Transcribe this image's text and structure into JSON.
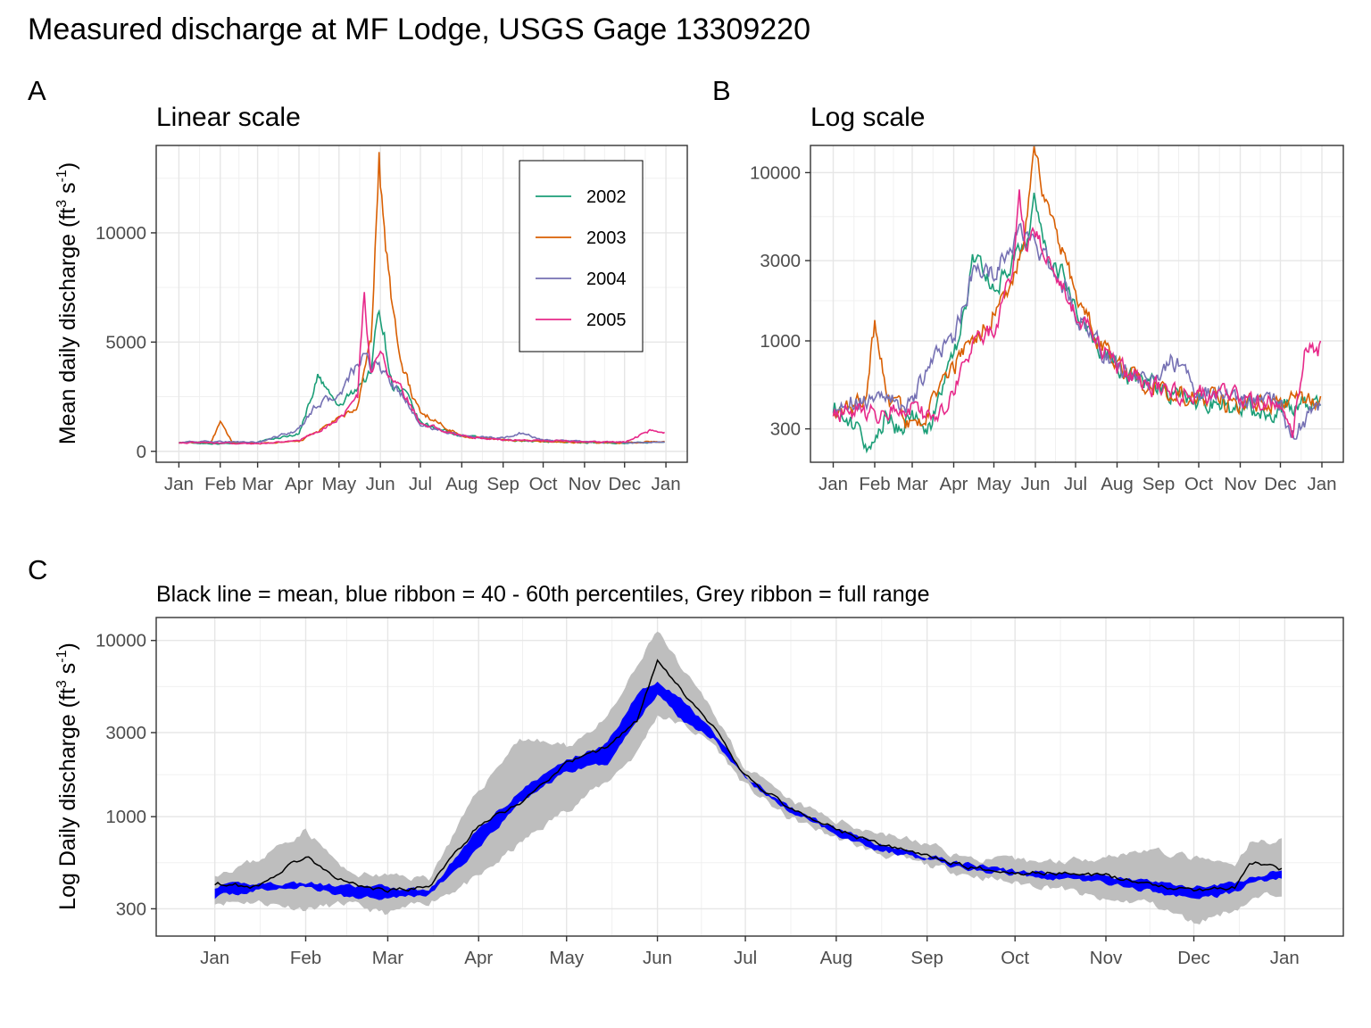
{
  "figure": {
    "title": "Measured discharge at MF Lodge, USGS Gage 13309220"
  },
  "chart_data": [
    {
      "panel": "A",
      "type": "line",
      "title": "Linear scale",
      "xlabel": "",
      "ylabel": "Mean daily discharge (ft3 s-1)",
      "ylabel_parts": {
        "main": "Mean daily discharge (ft",
        "sup1": "3",
        "mid": " s",
        "sup2": "-1",
        "end": ")"
      },
      "y_scale": "linear",
      "ylim": [
        -500,
        14000
      ],
      "x_ticks": [
        "Jan",
        "Feb",
        "Mar",
        "Apr",
        "May",
        "Jun",
        "Jul",
        "Aug",
        "Sep",
        "Oct",
        "Nov",
        "Dec",
        "Jan"
      ],
      "y_ticks": [
        0,
        5000,
        10000
      ],
      "y_tick_labels": [
        "0",
        "5000",
        "10000"
      ],
      "grid": true,
      "legend": {
        "position": "top-right",
        "entries": [
          "2002",
          "2003",
          "2004",
          "2005"
        ]
      },
      "series": [
        {
          "name": "2002",
          "color": "#1b9e77",
          "x": [
            "Jan 1",
            "Feb 1",
            "Mar 1",
            "Apr 1",
            "Apr 15",
            "May 1",
            "May 15",
            "May 25",
            "May 31",
            "Jun 10",
            "Jun 20",
            "Jul 1",
            "Aug 1",
            "Sep 1",
            "Oct 1",
            "Nov 1",
            "Dec 1",
            "Dec 31"
          ],
          "y": [
            400,
            350,
            420,
            800,
            3400,
            2000,
            3000,
            3600,
            6800,
            3000,
            2600,
            1300,
            700,
            520,
            450,
            400,
            380,
            420
          ]
        },
        {
          "name": "2003",
          "color": "#d95f02",
          "x": [
            "Jan 1",
            "Jan 25",
            "Feb 1",
            "Feb 10",
            "Mar 1",
            "Apr 1",
            "Apr 15",
            "May 1",
            "May 15",
            "May 25",
            "May 31",
            "Jun 5",
            "Jun 15",
            "Jun 25",
            "Jul 1",
            "Aug 1",
            "Sep 1",
            "Oct 1",
            "Nov 1",
            "Dec 1",
            "Dec 31"
          ],
          "y": [
            400,
            420,
            1300,
            420,
            350,
            450,
            900,
            1500,
            2000,
            5000,
            13300,
            9000,
            4500,
            2500,
            1800,
            700,
            520,
            450,
            400,
            400,
            450
          ]
        },
        {
          "name": "2004",
          "color": "#7570b3",
          "x": [
            "Jan 1",
            "Feb 1",
            "Mar 1",
            "Apr 1",
            "Apr 15",
            "May 1",
            "May 10",
            "May 20",
            "May 25",
            "May 31",
            "Jun 10",
            "Jun 20",
            "Jul 1",
            "Aug 1",
            "Sep 1",
            "Sep 15",
            "Oct 1",
            "Nov 1",
            "Dec 1",
            "Dec 31"
          ],
          "y": [
            420,
            450,
            400,
            1000,
            2200,
            2500,
            3500,
            4300,
            3800,
            4000,
            3000,
            2400,
            1200,
            700,
            600,
            850,
            500,
            450,
            400,
            420
          ]
        },
        {
          "name": "2005",
          "color": "#e7298a",
          "x": [
            "Jan 1",
            "Feb 1",
            "Mar 1",
            "Apr 1",
            "Apr 15",
            "May 1",
            "May 15",
            "May 20",
            "May 25",
            "May 31",
            "Jun 10",
            "Jun 20",
            "Jul 1",
            "Aug 1",
            "Sep 1",
            "Oct 1",
            "Nov 1",
            "Dec 1",
            "Dec 20",
            "Dec 31"
          ],
          "y": [
            400,
            380,
            350,
            500,
            900,
            1500,
            2500,
            7300,
            3500,
            4500,
            3300,
            2500,
            1300,
            700,
            520,
            500,
            450,
            420,
            950,
            900
          ]
        }
      ]
    },
    {
      "panel": "B",
      "type": "line",
      "title": "Log scale",
      "xlabel": "",
      "ylabel": "",
      "y_scale": "log",
      "ylim": [
        190,
        14500
      ],
      "x_ticks": [
        "Jan",
        "Feb",
        "Mar",
        "Apr",
        "May",
        "Jun",
        "Jul",
        "Aug",
        "Sep",
        "Oct",
        "Nov",
        "Dec",
        "Jan"
      ],
      "y_ticks": [
        300,
        1000,
        3000,
        10000
      ],
      "y_tick_labels": [
        "300",
        "1000",
        "3000",
        "10000"
      ],
      "grid": true,
      "series": [
        {
          "name": "2002",
          "color": "#1b9e77",
          "x": [
            "Jan 1",
            "Jan 10",
            "Jan 20",
            "Feb 1",
            "Feb 10",
            "Feb 20",
            "Mar 1",
            "Mar 15",
            "Apr 1",
            "Apr 10",
            "Apr 15",
            "May 1",
            "May 15",
            "May 25",
            "May 31",
            "Jun 10",
            "Jun 20",
            "Jul 1",
            "Aug 1",
            "Sep 1",
            "Oct 1",
            "Nov 1",
            "Dec 1",
            "Dec 31"
          ],
          "y": [
            420,
            330,
            300,
            220,
            380,
            300,
            350,
            320,
            800,
            1500,
            3300,
            2000,
            3000,
            3600,
            6800,
            3200,
            2600,
            1500,
            700,
            520,
            450,
            400,
            400,
            450
          ]
        },
        {
          "name": "2003",
          "color": "#d95f02",
          "x": [
            "Jan 1",
            "Jan 10",
            "Jan 25",
            "Feb 1",
            "Feb 10",
            "Feb 20",
            "Mar 1",
            "Mar 15",
            "Apr 1",
            "Apr 15",
            "May 1",
            "May 15",
            "May 25",
            "May 31",
            "Jun 5",
            "Jun 15",
            "Jun 25",
            "Jul 1",
            "Aug 1",
            "Sep 1",
            "Oct 1",
            "Nov 1",
            "Dec 1",
            "Dec 31"
          ],
          "y": [
            420,
            380,
            450,
            1300,
            450,
            400,
            300,
            420,
            700,
            1000,
            1500,
            2000,
            5000,
            13300,
            9000,
            4500,
            2800,
            1800,
            700,
            520,
            480,
            420,
            450,
            450
          ]
        },
        {
          "name": "2004",
          "color": "#7570b3",
          "x": [
            "Jan 1",
            "Feb 1",
            "Mar 1",
            "Mar 15",
            "Apr 1",
            "Apr 15",
            "May 1",
            "May 10",
            "May 20",
            "May 31",
            "Jun 10",
            "Jun 20",
            "Jul 1",
            "Aug 1",
            "Sep 1",
            "Sep 10",
            "Sep 20",
            "Oct 1",
            "Nov 1",
            "Dec 1",
            "Dec 10",
            "Dec 31"
          ],
          "y": [
            420,
            450,
            420,
            800,
            1000,
            2500,
            2500,
            3500,
            4300,
            4000,
            3000,
            2400,
            1500,
            700,
            600,
            800,
            700,
            500,
            450,
            420,
            280,
            420
          ]
        },
        {
          "name": "2005",
          "color": "#e7298a",
          "x": [
            "Jan 1",
            "Feb 1",
            "Mar 1",
            "Mar 15",
            "Apr 1",
            "Apr 15",
            "May 1",
            "May 15",
            "May 20",
            "May 25",
            "May 31",
            "Jun 10",
            "Jun 20",
            "Jul 1",
            "Aug 1",
            "Sep 1",
            "Oct 1",
            "Nov 1",
            "Dec 1",
            "Dec 10",
            "Dec 20",
            "Dec 31"
          ],
          "y": [
            400,
            380,
            400,
            350,
            500,
            900,
            1200,
            2500,
            7300,
            3500,
            4500,
            3300,
            2500,
            1500,
            700,
            520,
            500,
            450,
            420,
            260,
            1000,
            900
          ]
        }
      ]
    },
    {
      "panel": "C",
      "type": "area",
      "title": "Black line = mean, blue ribbon = 40 - 60th percentiles, Grey ribbon = full range",
      "xlabel": "",
      "ylabel": "Log Daily discharge (ft3 s-1)",
      "ylabel_parts": {
        "main": "Log Daily discharge (ft",
        "sup1": "3",
        "mid": " s",
        "sup2": "-1",
        "end": ")"
      },
      "y_scale": "log",
      "ylim": [
        210,
        13500
      ],
      "x_ticks": [
        "Jan",
        "Feb",
        "Mar",
        "Apr",
        "May",
        "Jun",
        "Jul",
        "Aug",
        "Sep",
        "Oct",
        "Nov",
        "Dec",
        "Jan"
      ],
      "y_ticks": [
        300,
        1000,
        3000,
        10000
      ],
      "y_tick_labels": [
        "300",
        "1000",
        "3000",
        "10000"
      ],
      "grid": true,
      "x": [
        "Jan 1",
        "Jan 15",
        "Feb 1",
        "Feb 15",
        "Mar 1",
        "Mar 15",
        "Apr 1",
        "Apr 15",
        "May 1",
        "May 15",
        "May 25",
        "Jun 1",
        "Jun 10",
        "Jun 20",
        "Jul 1",
        "Jul 15",
        "Aug 1",
        "Aug 15",
        "Sep 1",
        "Sep 15",
        "Oct 1",
        "Oct 15",
        "Nov 1",
        "Nov 15",
        "Dec 1",
        "Dec 15",
        "Dec 20",
        "Dec 31"
      ],
      "mean": [
        420,
        400,
        600,
        420,
        380,
        400,
        900,
        1200,
        2000,
        2500,
        3500,
        7500,
        5000,
        3200,
        1700,
        1150,
        850,
        700,
        600,
        520,
        480,
        480,
        460,
        420,
        380,
        400,
        560,
        500
      ],
      "p40": [
        350,
        380,
        400,
        350,
        350,
        360,
        650,
        1200,
        1800,
        2000,
        3500,
        5000,
        3500,
        2800,
        1600,
        1100,
        800,
        650,
        570,
        500,
        470,
        450,
        420,
        380,
        340,
        370,
        420,
        450
      ],
      "p60": [
        400,
        420,
        420,
        400,
        400,
        380,
        850,
        1400,
        2100,
        2600,
        5000,
        6000,
        4500,
        3000,
        1700,
        1150,
        850,
        700,
        600,
        540,
        490,
        480,
        460,
        430,
        400,
        420,
        450,
        500
      ],
      "min": [
        330,
        330,
        300,
        320,
        280,
        330,
        450,
        700,
        1100,
        1600,
        2300,
        3800,
        3300,
        2600,
        1500,
        1000,
        760,
        620,
        530,
        470,
        420,
        400,
        330,
        330,
        250,
        300,
        330,
        380
      ],
      "max": [
        480,
        560,
        850,
        480,
        460,
        450,
        1400,
        2800,
        2500,
        3600,
        7000,
        11500,
        6500,
        4000,
        1900,
        1250,
        950,
        820,
        700,
        580,
        560,
        560,
        600,
        650,
        580,
        520,
        700,
        750
      ]
    }
  ]
}
